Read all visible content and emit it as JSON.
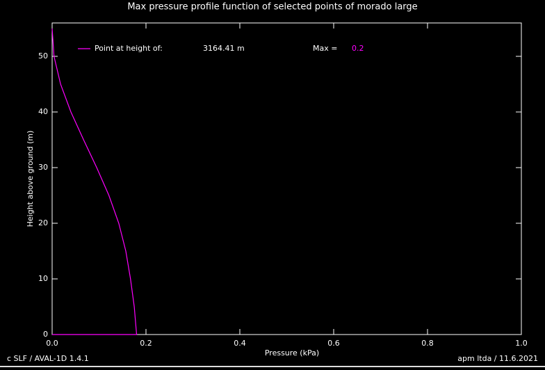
{
  "chart_data": {
    "type": "line",
    "title": "Max pressure profile function of selected points of morado large",
    "x_label": "Pressure (kPa)",
    "y_label": "Height above ground (m)",
    "xlim": [
      0,
      1
    ],
    "ylim": [
      0,
      56
    ],
    "xticks": [
      {
        "value": 0,
        "label": "0.0"
      },
      {
        "value": 0.2,
        "label": "0.2"
      },
      {
        "value": 0.4,
        "label": "0.4"
      },
      {
        "value": 0.6,
        "label": "0.6"
      },
      {
        "value": 0.8,
        "label": "0.8"
      },
      {
        "value": 1,
        "label": "1.0"
      }
    ],
    "yticks": [
      0,
      10,
      20,
      30,
      40,
      50
    ],
    "series": [
      {
        "name": "Point at height of:",
        "color": "#ff00ff",
        "x": [
          0,
          0.18,
          0.175,
          0.167,
          0.157,
          0.142,
          0.121,
          0.095,
          0.067,
          0.04,
          0.018,
          0.004,
          0
        ],
        "values": [
          0,
          0,
          5,
          10,
          15,
          20,
          25,
          30,
          35,
          40,
          45,
          50,
          55
        ]
      }
    ],
    "legend_height": "3164.41 m",
    "max_label": "Max =",
    "max_value": {
      "value": 0.2,
      "label": "0.2",
      "color": "#ff00ff"
    },
    "footer_left": "c SLF / AVAL-1D 1.4.1",
    "footer_right": "apm ltda  /  11.6.2021"
  }
}
